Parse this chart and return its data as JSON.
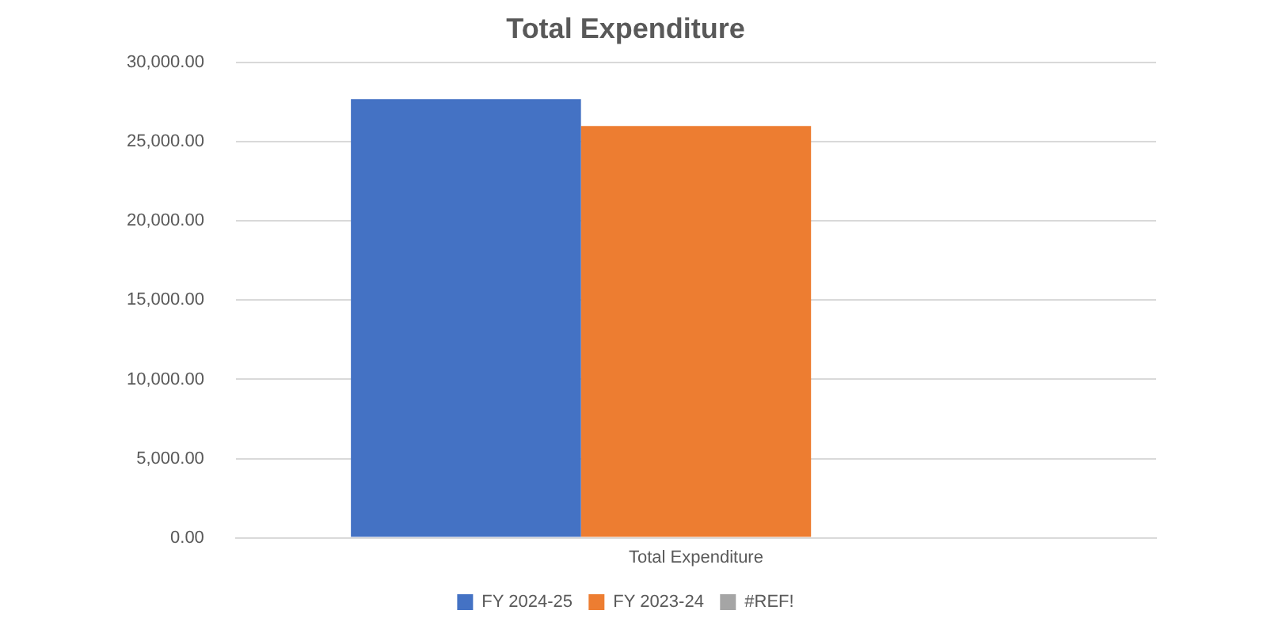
{
  "chart_data": {
    "type": "bar",
    "title": "Total Expenditure",
    "categories": [
      "Total Expenditure"
    ],
    "series": [
      {
        "name": "FY 2024-25",
        "color": "#4472c4",
        "values": [
          27700
        ]
      },
      {
        "name": "FY 2023-24",
        "color": "#ed7d31",
        "values": [
          26000
        ]
      },
      {
        "name": "#REF!",
        "color": "#a5a5a5",
        "values": [
          null
        ]
      }
    ],
    "ylim": [
      0,
      30000
    ],
    "yticks": [
      {
        "value": 0,
        "label": "0.00"
      },
      {
        "value": 5000,
        "label": "5,000.00"
      },
      {
        "value": 10000,
        "label": "10,000.00"
      },
      {
        "value": 15000,
        "label": "15,000.00"
      },
      {
        "value": 20000,
        "label": "20,000.00"
      },
      {
        "value": 25000,
        "label": "25,000.00"
      },
      {
        "value": 30000,
        "label": "30,000.00"
      }
    ],
    "grid": "y",
    "legend": "bottom"
  }
}
